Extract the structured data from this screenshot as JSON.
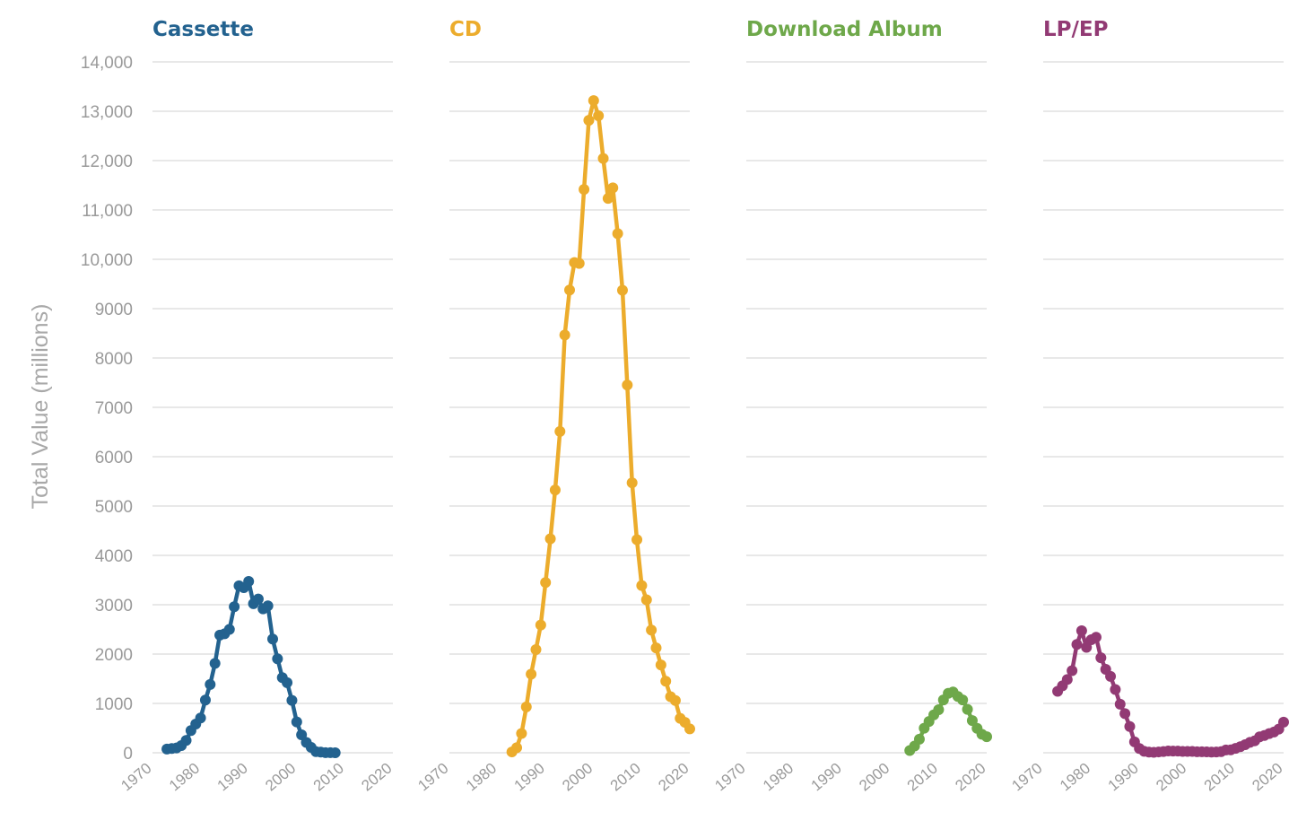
{
  "chart_data": {
    "type": "line",
    "ylabel": "Total Value (millions)",
    "ylim": [
      0,
      14000
    ],
    "yticks": [
      0,
      1000,
      2000,
      3000,
      4000,
      5000,
      6000,
      7000,
      8000,
      9000,
      10000,
      11000,
      12000,
      13000,
      14000
    ],
    "ytick_labels": [
      "0",
      "1000",
      "2000",
      "3000",
      "4000",
      "5000",
      "6000",
      "7000",
      "8000",
      "9000",
      "10,000",
      "11,000",
      "12,000",
      "13,000",
      "14,000"
    ],
    "xlim": [
      1970,
      2020
    ],
    "xticks": [
      1970,
      1980,
      1990,
      2000,
      2010,
      2020
    ],
    "xtick_labels": [
      "1970",
      "1980",
      "1990",
      "2000",
      "2010",
      "2020"
    ],
    "grid": true,
    "panels": [
      {
        "name": "Cassette",
        "color": "#23628f",
        "x": [
          1973,
          1974,
          1975,
          1976,
          1977,
          1978,
          1979,
          1980,
          1981,
          1982,
          1983,
          1984,
          1985,
          1986,
          1987,
          1988,
          1989,
          1990,
          1991,
          1992,
          1993,
          1994,
          1995,
          1996,
          1997,
          1998,
          1999,
          2000,
          2001,
          2002,
          2003,
          2004,
          2005,
          2006,
          2007,
          2008
        ],
        "y": [
          76,
          87,
          98,
          145,
          249,
          450,
          582,
          705,
          1069,
          1385,
          1811,
          2384,
          2411,
          2500,
          2960,
          3385,
          3346,
          3472,
          3020,
          3116,
          2916,
          2977,
          2304,
          1905,
          1523,
          1420,
          1062,
          626,
          363,
          210,
          108,
          23,
          13,
          3,
          3,
          1
        ]
      },
      {
        "name": "CD",
        "color": "#ecac2c",
        "x": [
          1983,
          1984,
          1985,
          1986,
          1987,
          1988,
          1989,
          1990,
          1991,
          1992,
          1993,
          1994,
          1995,
          1996,
          1997,
          1998,
          1999,
          2000,
          2001,
          2002,
          2003,
          2004,
          2005,
          2006,
          2007,
          2008,
          2009,
          2010,
          2011,
          2012,
          2013,
          2014,
          2015,
          2016,
          2017,
          2018,
          2019,
          2020
        ],
        "y": [
          17,
          103,
          390,
          930,
          1594,
          2090,
          2588,
          3451,
          4337,
          5326,
          6511,
          8465,
          9377,
          9935,
          9915,
          11416,
          12816,
          13215,
          12909,
          12044,
          11233,
          11447,
          10520,
          9373,
          7452,
          5471,
          4319,
          3389,
          3100,
          2486,
          2124,
          1780,
          1450,
          1136,
          1059,
          698,
          615,
          483
        ]
      },
      {
        "name": "Download Album",
        "color": "#6ea84a",
        "x": [
          2004,
          2005,
          2006,
          2007,
          2008,
          2009,
          2010,
          2011,
          2012,
          2013,
          2014,
          2015,
          2016,
          2017,
          2018,
          2019,
          2020
        ],
        "y": [
          45,
          136,
          275,
          497,
          635,
          768,
          872,
          1071,
          1204,
          1232,
          1140,
          1071,
          880,
          652,
          495,
          374,
          325
        ]
      },
      {
        "name": "LP/EP",
        "color": "#923a74",
        "x": [
          1973,
          1974,
          1975,
          1976,
          1977,
          1978,
          1979,
          1980,
          1981,
          1982,
          1983,
          1984,
          1985,
          1986,
          1987,
          1988,
          1989,
          1990,
          1991,
          1992,
          1993,
          1994,
          1995,
          1996,
          1997,
          1998,
          1999,
          2000,
          2001,
          2002,
          2003,
          2004,
          2005,
          2006,
          2007,
          2008,
          2009,
          2010,
          2011,
          2012,
          2013,
          2014,
          2015,
          2016,
          2017,
          2018,
          2019,
          2020
        ],
        "y": [
          1246,
          1357,
          1485,
          1663,
          2196,
          2473,
          2136,
          2291,
          2341,
          1925,
          1690,
          1548,
          1281,
          984,
          793,
          532,
          220,
          86,
          29,
          14,
          10,
          17,
          25,
          36,
          33,
          34,
          27,
          28,
          27,
          21,
          21,
          19,
          14,
          16,
          22,
          57,
          60,
          89,
          123,
          163,
          211,
          242,
          323,
          349,
          389,
          420,
          480,
          620
        ]
      }
    ]
  }
}
